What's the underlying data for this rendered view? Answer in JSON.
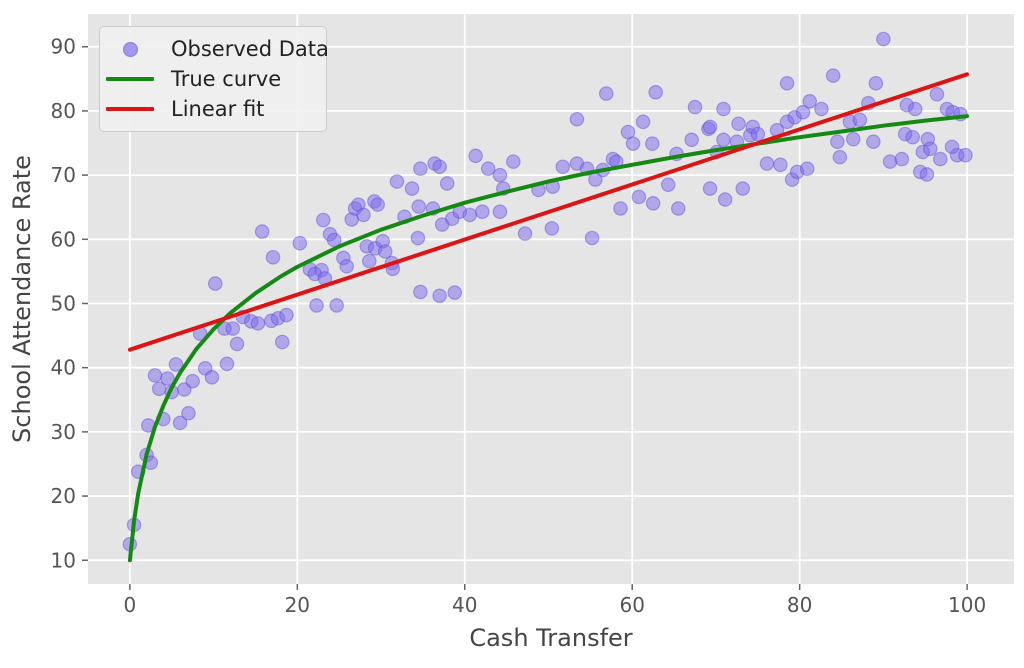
{
  "chart_data": {
    "type": "scatter",
    "title": "",
    "xlabel": "Cash Transfer",
    "ylabel": "School Attendance Rate",
    "x_ticks": [
      0,
      20,
      40,
      60,
      80,
      100
    ],
    "y_ticks": [
      10,
      20,
      30,
      40,
      50,
      60,
      70,
      80,
      90
    ],
    "xlim": [
      -5.0,
      105.6
    ],
    "ylim": [
      6.3,
      95.1
    ],
    "grid": true,
    "legend_position": "upper-left",
    "colors": {
      "axes_background": "#e5e5e5",
      "gridline": "#ffffff",
      "tick_label": "#555555",
      "axis_label": "#454545",
      "scatter_fill": "#7b68ee",
      "scatter_edge": "#5b4fd6",
      "true_curve": "#148a14",
      "linear_fit": "#dd1414"
    },
    "legend": {
      "entries": [
        {
          "label": "Observed Data",
          "type": "marker",
          "color": "#7b68ee"
        },
        {
          "label": "True curve",
          "type": "line",
          "color": "#148a14"
        },
        {
          "label": "Linear fit",
          "type": "line",
          "color": "#dd1414"
        }
      ]
    },
    "series": [
      {
        "name": "Observed Data",
        "type": "scatter",
        "points": [
          [
            0,
            12.5
          ],
          [
            0.5,
            15.5
          ],
          [
            1,
            23.8
          ],
          [
            2,
            26.4
          ],
          [
            2.2,
            31
          ],
          [
            2.5,
            25.2
          ],
          [
            3,
            38.8
          ],
          [
            3.5,
            36.7
          ],
          [
            4,
            32
          ],
          [
            4.5,
            38.3
          ],
          [
            5,
            36.2
          ],
          [
            5.5,
            40.5
          ],
          [
            6,
            31.4
          ],
          [
            6.5,
            36.6
          ],
          [
            7,
            32.9
          ],
          [
            7.5,
            37.9
          ],
          [
            8.4,
            45.3
          ],
          [
            9,
            39.9
          ],
          [
            9.8,
            38.5
          ],
          [
            10.2,
            53.1
          ],
          [
            11.3,
            46.1
          ],
          [
            11.6,
            40.6
          ],
          [
            12.3,
            46.1
          ],
          [
            12.8,
            43.7
          ],
          [
            13.5,
            47.9
          ],
          [
            14.5,
            47.2
          ],
          [
            15.3,
            46.9
          ],
          [
            15.8,
            61.2
          ],
          [
            16.9,
            47.3
          ],
          [
            17.1,
            57.2
          ],
          [
            17.7,
            47.7
          ],
          [
            18.2,
            44
          ],
          [
            18.7,
            48.2
          ],
          [
            20.3,
            59.4
          ],
          [
            21.5,
            55.3
          ],
          [
            22.1,
            54.6
          ],
          [
            22.3,
            49.7
          ],
          [
            22.9,
            55.2
          ],
          [
            23.1,
            63
          ],
          [
            23.3,
            53.9
          ],
          [
            23.9,
            60.8
          ],
          [
            24.4,
            59.9
          ],
          [
            24.7,
            49.7
          ],
          [
            25.5,
            57.1
          ],
          [
            25.9,
            55.8
          ],
          [
            26.5,
            63.1
          ],
          [
            26.9,
            64.8
          ],
          [
            27.3,
            65.4
          ],
          [
            27.9,
            63.8
          ],
          [
            28.3,
            58.9
          ],
          [
            28.6,
            56.6
          ],
          [
            29.2,
            65.9
          ],
          [
            29.3,
            58.6
          ],
          [
            29.6,
            65.4
          ],
          [
            30.2,
            59.7
          ],
          [
            30.5,
            58.1
          ],
          [
            31.3,
            56.3
          ],
          [
            31.4,
            55.4
          ],
          [
            31.9,
            69
          ],
          [
            32.8,
            63.5
          ],
          [
            33.7,
            67.9
          ],
          [
            34.4,
            60.2
          ],
          [
            34.5,
            65.1
          ],
          [
            34.7,
            71
          ],
          [
            34.7,
            51.8
          ],
          [
            36.2,
            64.8
          ],
          [
            36.4,
            71.8
          ],
          [
            37,
            51.2
          ],
          [
            37,
            71.3
          ],
          [
            37.3,
            62.3
          ],
          [
            37.9,
            68.7
          ],
          [
            38.5,
            63.2
          ],
          [
            38.8,
            51.7
          ],
          [
            39.4,
            64.3
          ],
          [
            40.6,
            63.8
          ],
          [
            41.3,
            73
          ],
          [
            42.1,
            64.3
          ],
          [
            42.8,
            71
          ],
          [
            44.2,
            70
          ],
          [
            44.2,
            64.3
          ],
          [
            44.6,
            67.9
          ],
          [
            45.8,
            72.1
          ],
          [
            47.2,
            60.9
          ],
          [
            48.8,
            67.7
          ],
          [
            50.4,
            61.7
          ],
          [
            50.5,
            68.2
          ],
          [
            51.7,
            71.3
          ],
          [
            53.4,
            78.7
          ],
          [
            53.4,
            71.8
          ],
          [
            54.6,
            71
          ],
          [
            55.2,
            60.2
          ],
          [
            55.6,
            69.3
          ],
          [
            56.5,
            70.8
          ],
          [
            56.9,
            82.7
          ],
          [
            57.7,
            72.5
          ],
          [
            58.1,
            72.1
          ],
          [
            58.6,
            64.8
          ],
          [
            59.5,
            76.7
          ],
          [
            60.1,
            74.9
          ],
          [
            60.8,
            66.6
          ],
          [
            61.3,
            78.3
          ],
          [
            62.4,
            74.9
          ],
          [
            62.5,
            65.6
          ],
          [
            62.8,
            82.9
          ],
          [
            64.3,
            68.5
          ],
          [
            65.3,
            73.3
          ],
          [
            65.5,
            64.8
          ],
          [
            67.1,
            75.5
          ],
          [
            67.5,
            80.6
          ],
          [
            69.1,
            77.2
          ],
          [
            69.3,
            67.9
          ],
          [
            69.3,
            77.5
          ],
          [
            70.1,
            73.6
          ],
          [
            70.9,
            80.3
          ],
          [
            70.9,
            75.5
          ],
          [
            71.1,
            66.2
          ],
          [
            72.5,
            75.2
          ],
          [
            72.7,
            78
          ],
          [
            73.2,
            67.9
          ],
          [
            74.1,
            76.2
          ],
          [
            74.4,
            77.5
          ],
          [
            75,
            76.4
          ],
          [
            76.1,
            71.8
          ],
          [
            77.3,
            77
          ],
          [
            77.7,
            71.6
          ],
          [
            78.5,
            84.3
          ],
          [
            78.5,
            78.3
          ],
          [
            79.1,
            69.3
          ],
          [
            79.4,
            79
          ],
          [
            79.7,
            70.5
          ],
          [
            80.4,
            79.8
          ],
          [
            80.9,
            71
          ],
          [
            81.2,
            81.5
          ],
          [
            82.6,
            80.3
          ],
          [
            84,
            85.5
          ],
          [
            84.5,
            75.2
          ],
          [
            84.8,
            72.8
          ],
          [
            86,
            78.3
          ],
          [
            86.4,
            75.6
          ],
          [
            87.2,
            78.6
          ],
          [
            88.2,
            81.2
          ],
          [
            88.8,
            75.2
          ],
          [
            89.1,
            84.3
          ],
          [
            90,
            91.2
          ],
          [
            90.8,
            72.1
          ],
          [
            92.2,
            72.5
          ],
          [
            92.6,
            76.4
          ],
          [
            92.8,
            80.9
          ],
          [
            93.5,
            75.9
          ],
          [
            93.8,
            80.3
          ],
          [
            94.4,
            70.5
          ],
          [
            94.7,
            73.6
          ],
          [
            95.2,
            70.1
          ],
          [
            95.3,
            75.6
          ],
          [
            95.6,
            74.1
          ],
          [
            96.4,
            82.6
          ],
          [
            96.8,
            72.5
          ],
          [
            97.6,
            80.3
          ],
          [
            98.2,
            74.4
          ],
          [
            98.3,
            79.8
          ],
          [
            98.8,
            73.1
          ],
          [
            99.2,
            79.5
          ],
          [
            99.8,
            73.1
          ]
        ]
      },
      {
        "name": "True curve",
        "type": "line",
        "points": [
          [
            0,
            10
          ],
          [
            0.5,
            16.1
          ],
          [
            1,
            20.4
          ],
          [
            2,
            26.5
          ],
          [
            3,
            30.8
          ],
          [
            4,
            34.1
          ],
          [
            5,
            36.9
          ],
          [
            6,
            39.2
          ],
          [
            8,
            43
          ],
          [
            10,
            46
          ],
          [
            12,
            48.5
          ],
          [
            15,
            51.6
          ],
          [
            18,
            54.2
          ],
          [
            20,
            55.7
          ],
          [
            25,
            58.9
          ],
          [
            30,
            61.5
          ],
          [
            35,
            63.7
          ],
          [
            40,
            65.7
          ],
          [
            45,
            67.4
          ],
          [
            50,
            69
          ],
          [
            55,
            70.4
          ],
          [
            60,
            71.6
          ],
          [
            65,
            72.8
          ],
          [
            70,
            73.9
          ],
          [
            75,
            74.9
          ],
          [
            80,
            75.9
          ],
          [
            85,
            76.8
          ],
          [
            90,
            77.7
          ],
          [
            95,
            78.5
          ],
          [
            100,
            79.2
          ]
        ]
      },
      {
        "name": "Linear fit",
        "type": "line",
        "points": [
          [
            0,
            42.8
          ],
          [
            100,
            85.7
          ]
        ]
      }
    ]
  }
}
